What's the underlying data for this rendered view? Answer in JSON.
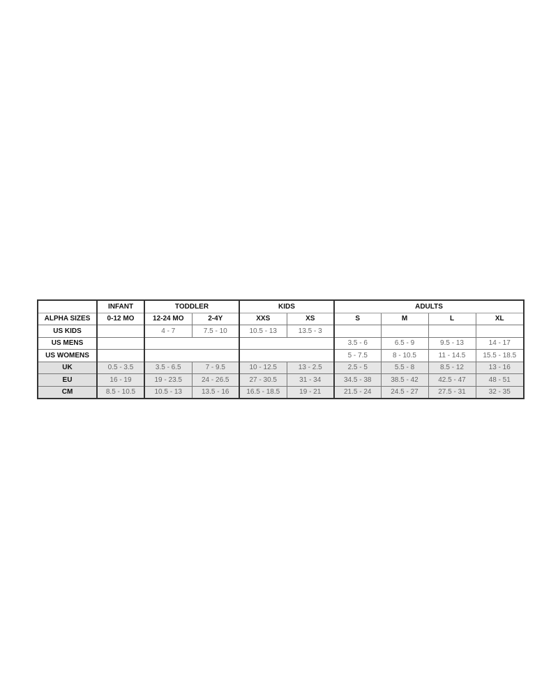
{
  "groups": [
    {
      "label": "",
      "span": 1
    },
    {
      "label": "INFANT",
      "span": 1
    },
    {
      "label": "TODDLER",
      "span": 2
    },
    {
      "label": "KIDS",
      "span": 2
    },
    {
      "label": "ADULTS",
      "span": 4
    }
  ],
  "rows": [
    {
      "label": "ALPHA SIZES",
      "header": true,
      "cells": [
        {
          "v": "0-12 MO",
          "span": 1
        },
        {
          "v": "12-24 MO",
          "span": 1
        },
        {
          "v": "2-4Y",
          "span": 1
        },
        {
          "v": "XXS",
          "span": 1
        },
        {
          "v": "XS",
          "span": 1
        },
        {
          "v": "S",
          "span": 1
        },
        {
          "v": "M",
          "span": 1
        },
        {
          "v": "L",
          "span": 1
        },
        {
          "v": "XL",
          "span": 1
        }
      ]
    },
    {
      "label": "US KIDS",
      "cells": [
        {
          "v": "",
          "span": 1
        },
        {
          "v": "4 - 7",
          "span": 1
        },
        {
          "v": "7.5 - 10",
          "span": 1
        },
        {
          "v": "10.5 - 13",
          "span": 1
        },
        {
          "v": "13.5 - 3",
          "span": 1
        },
        {
          "v": "",
          "span": 1
        },
        {
          "v": "",
          "span": 1
        },
        {
          "v": "",
          "span": 1
        },
        {
          "v": "",
          "span": 1
        }
      ]
    },
    {
      "label": "US MENS",
      "cells": [
        {
          "v": "",
          "span": 1
        },
        {
          "v": "",
          "span": 2
        },
        {
          "v": "",
          "span": 2
        },
        {
          "v": "3.5 - 6",
          "span": 1
        },
        {
          "v": "6.5 - 9",
          "span": 1
        },
        {
          "v": "9.5 - 13",
          "span": 1
        },
        {
          "v": "14 - 17",
          "span": 1
        }
      ]
    },
    {
      "label": "US WOMENS",
      "cells": [
        {
          "v": "",
          "span": 1
        },
        {
          "v": "",
          "span": 2
        },
        {
          "v": "",
          "span": 2
        },
        {
          "v": "5 - 7.5",
          "span": 1
        },
        {
          "v": "8 - 10.5",
          "span": 1
        },
        {
          "v": "11 - 14.5",
          "span": 1
        },
        {
          "v": "15.5 - 18.5",
          "span": 1
        }
      ]
    },
    {
      "label": "UK",
      "gray": true,
      "cells": [
        {
          "v": "0.5 - 3.5",
          "span": 1
        },
        {
          "v": "3.5 - 6.5",
          "span": 1
        },
        {
          "v": "7 - 9.5",
          "span": 1
        },
        {
          "v": "10 - 12.5",
          "span": 1
        },
        {
          "v": "13 - 2.5",
          "span": 1
        },
        {
          "v": "2.5 - 5",
          "span": 1
        },
        {
          "v": "5.5 - 8",
          "span": 1
        },
        {
          "v": "8.5 - 12",
          "span": 1
        },
        {
          "v": "13 - 16",
          "span": 1
        }
      ]
    },
    {
      "label": "EU",
      "gray": true,
      "cells": [
        {
          "v": "16 - 19",
          "span": 1
        },
        {
          "v": "19 - 23.5",
          "span": 1
        },
        {
          "v": "24 - 26.5",
          "span": 1
        },
        {
          "v": "27 - 30.5",
          "span": 1
        },
        {
          "v": "31 - 34",
          "span": 1
        },
        {
          "v": "34.5 - 38",
          "span": 1
        },
        {
          "v": "38.5 - 42",
          "span": 1
        },
        {
          "v": "42.5 - 47",
          "span": 1
        },
        {
          "v": "48 - 51",
          "span": 1
        }
      ]
    },
    {
      "label": "CM",
      "gray": true,
      "cells": [
        {
          "v": "8.5 - 10.5",
          "span": 1
        },
        {
          "v": "10.5 - 13",
          "span": 1
        },
        {
          "v": "13.5 - 16",
          "span": 1
        },
        {
          "v": "16.5 - 18.5",
          "span": 1
        },
        {
          "v": "19 - 21",
          "span": 1
        },
        {
          "v": "21.5 - 24",
          "span": 1
        },
        {
          "v": "24.5 - 27",
          "span": 1
        },
        {
          "v": "27.5 - 31",
          "span": 1
        },
        {
          "v": "32 - 35",
          "span": 1
        }
      ]
    }
  ]
}
